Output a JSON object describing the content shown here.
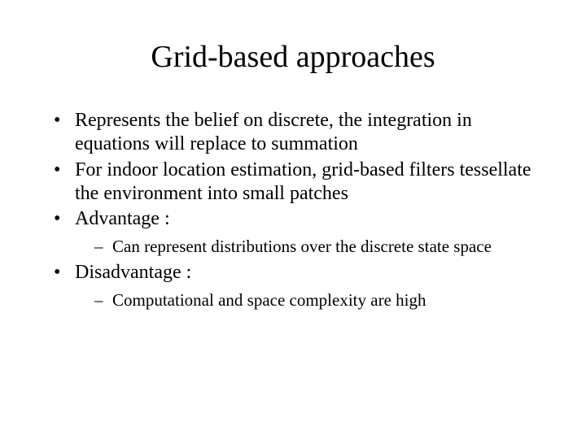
{
  "title": "Grid-based approaches",
  "bullets": {
    "b0": "Represents the belief on discrete, the integration in equations will replace to summation",
    "b1": "For indoor location estimation, grid-based filters tessellate the environment into small patches",
    "b2": "Advantage :",
    "b2_sub0": "Can represent distributions over the discrete state space",
    "b3": "Disadvantage :",
    "b3_sub0": "Computational and space complexity are high"
  },
  "style": {
    "background_color": "#ffffff",
    "text_color": "#000000",
    "font_family": "Times New Roman",
    "title_fontsize": 38,
    "body_fontsize": 24,
    "sub_fontsize": 21,
    "bullet_char": "•",
    "sub_bullet_char": "–"
  }
}
